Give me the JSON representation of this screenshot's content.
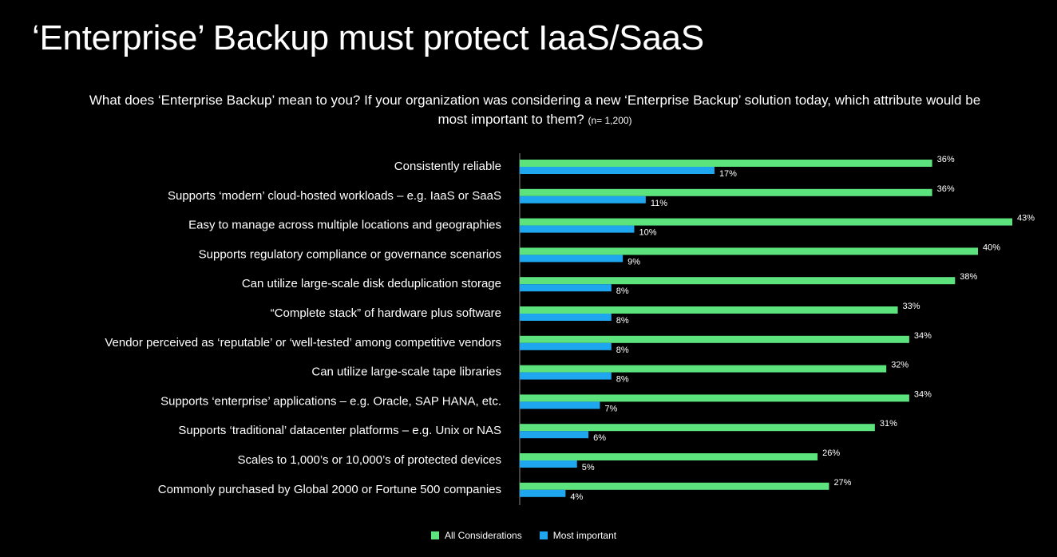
{
  "header": {
    "title": "‘Enterprise’ Backup must protect IaaS/SaaS",
    "question": "What does ‘Enterprise Backup’ mean to you? If your organization was considering a new ‘Enterprise Backup’ solution today, which attribute would be most important to them?",
    "sample_note": "(n= 1,200)"
  },
  "colors": {
    "background": "#000000",
    "all_considerations": "#5de37e",
    "most_important": "#1ea7ee"
  },
  "legend": {
    "items": [
      {
        "label": "All Considerations",
        "color": "#5de37e"
      },
      {
        "label": "Most important",
        "color": "#1ea7ee"
      }
    ]
  },
  "chart_data": {
    "type": "bar",
    "orientation": "horizontal",
    "categories": [
      "Consistently reliable",
      "Supports ‘modern’ cloud-hosted workloads – e.g. IaaS or SaaS",
      "Easy to manage across multiple locations and geographies",
      "Supports regulatory compliance or governance scenarios",
      "Can utilize large-scale disk deduplication storage",
      "“Complete stack” of hardware plus software",
      "Vendor perceived as ‘reputable’ or ‘well-tested’ among competitive vendors",
      "Can utilize large-scale tape libraries",
      "Supports ‘enterprise’ applications – e.g. Oracle, SAP HANA, etc.",
      "Supports ‘traditional’ datacenter platforms – e.g. Unix or NAS",
      "Scales to 1,000’s or 10,000’s of protected devices",
      "Commonly purchased by Global 2000 or Fortune 500 companies"
    ],
    "series": [
      {
        "name": "All Considerations",
        "color": "#5de37e",
        "values": [
          36,
          36,
          43,
          40,
          38,
          33,
          34,
          32,
          34,
          31,
          26,
          27
        ],
        "labels": [
          "36%",
          "36%",
          "43%",
          "40%",
          "38%",
          "33%",
          "34%",
          "32%",
          "34%",
          "31%",
          "26%",
          "27%"
        ]
      },
      {
        "name": "Most important",
        "color": "#1ea7ee",
        "values": [
          17,
          11,
          10,
          9,
          8,
          8,
          8,
          8,
          7,
          6,
          5,
          4
        ],
        "labels": [
          "17%",
          "11%",
          "10%",
          "9%",
          "8%",
          "8%",
          "8%",
          "8%",
          "7%",
          "6%",
          "5%",
          "4%"
        ]
      }
    ],
    "unit": "%",
    "xlim": [
      0,
      45
    ],
    "grid": false,
    "legend_position": "bottom"
  }
}
